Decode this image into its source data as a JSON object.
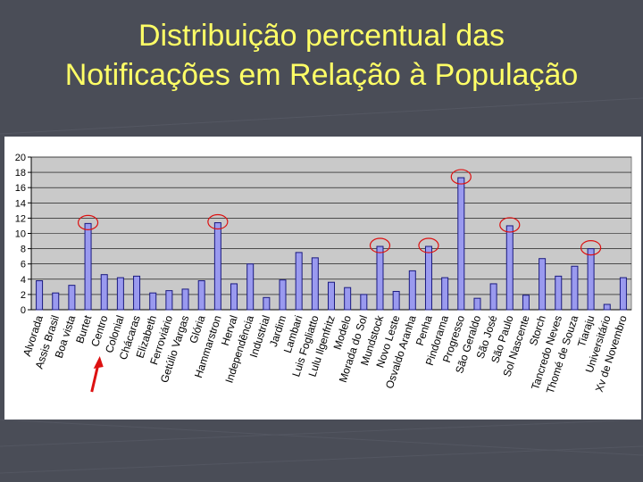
{
  "slide": {
    "title_line1": "Distribuição percentual das",
    "title_line2": "Notificações em Relação à População",
    "colors": {
      "background": "#4a4d57",
      "title": "#ffff66",
      "bar_fill": "#9a9aef",
      "bar_stroke": "#1a1a80",
      "highlight_circle": "#dd1111",
      "arrow": "#dd1111"
    }
  },
  "chart_data": {
    "type": "bar",
    "title": "",
    "xlabel": "",
    "ylabel": "",
    "ylim": [
      0,
      20
    ],
    "yticks": [
      0,
      2,
      4,
      6,
      8,
      10,
      12,
      14,
      16,
      18,
      20
    ],
    "grid": true,
    "legend": "none",
    "categories": [
      "Alvorada",
      "Assis Brasil",
      "Boa Vista",
      "Burtet",
      "Centro",
      "Colonial",
      "Chácaras",
      "Elizabeth",
      "Ferroviário",
      "Getúlio Vargas",
      "Glória",
      "Hammarstron",
      "Herval",
      "Independência",
      "Industrial",
      "Jardim",
      "Lambari",
      "Luís Fogliatto",
      "Lulu Ilgenfritz",
      "Modelo",
      "Morada do Sol",
      "Mundstock",
      "Novo Leste",
      "Osvaldo Aranha",
      "Penha",
      "Pindorama",
      "Progresso",
      "São Geraldo",
      "São José",
      "São Paulo",
      "Sol Nascente",
      "Storch",
      "Tancredo Neves",
      "Thomé de Souza",
      "Tiaraju",
      "Universitário",
      "Xv de Novembro"
    ],
    "category_labels": [
      "Alvorada",
      "Assis Brasil",
      "Boa vista",
      "Burtet",
      "Centro",
      "Colonial",
      "Chácaras",
      "Elizabeth",
      "Ferroviário",
      "Getúlio Vargas",
      "Glória",
      "Hammarstron",
      "Herval",
      "Independência",
      "Industrial",
      "Jardim",
      "Lambari",
      "Luis Fogliatto",
      "Lulu Ilgenfritz",
      "Modelo",
      "Morada do Sol",
      "Mundstock",
      "Novo Leste",
      "Osvaldo Aranha",
      "Penha",
      "Pindorama",
      "Progresso",
      "São Geraldo",
      "São José",
      "São Paulo",
      "Sol Nascente",
      "Storch",
      "Tancredo Neves",
      "Thomé de Souza",
      "Tiaraju",
      "Universitário",
      "Xv de Novembro"
    ],
    "values": [
      3.8,
      2.2,
      3.2,
      11.3,
      4.6,
      4.2,
      4.4,
      2.2,
      2.5,
      2.7,
      3.8,
      11.4,
      3.4,
      6.0,
      1.6,
      3.9,
      7.5,
      6.8,
      3.6,
      2.9,
      2.0,
      8.3,
      2.4,
      5.1,
      8.3,
      4.2,
      17.3,
      1.5,
      3.4,
      11.0,
      1.9,
      6.7,
      4.4,
      5.7,
      8.0,
      0.7,
      4.2
    ],
    "highlighted_categories": [
      "Burtet",
      "Hammarstron",
      "Mundstock",
      "Penha",
      "Progresso",
      "São Paulo",
      "Tiaraju"
    ],
    "arrow_points_to": "Centro"
  }
}
